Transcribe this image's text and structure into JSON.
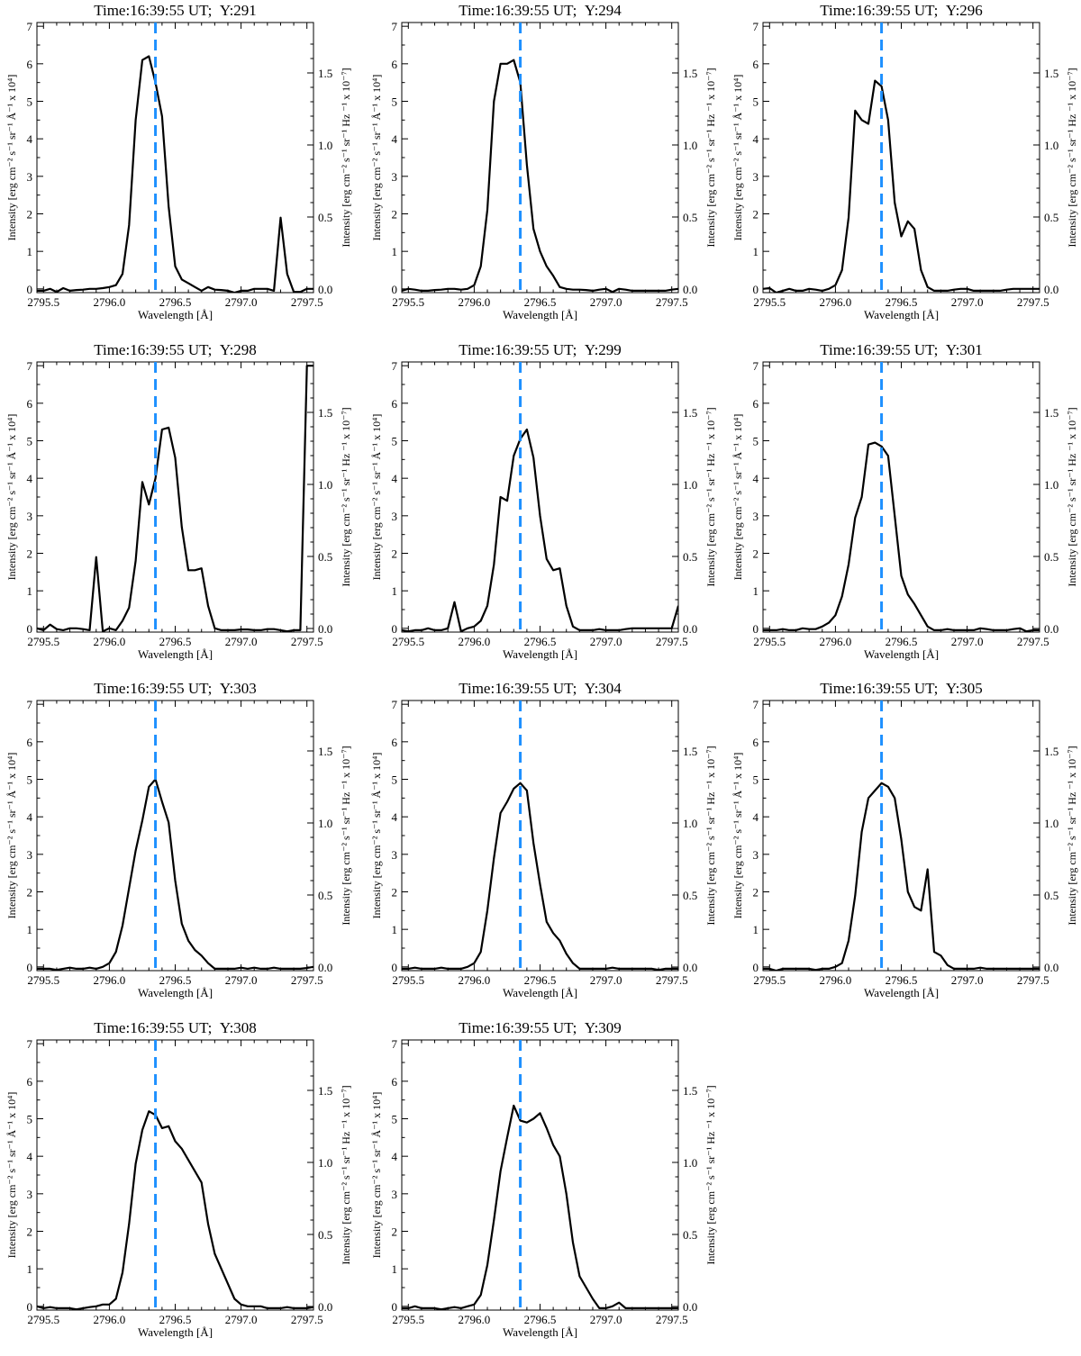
{
  "figure": {
    "time_label": "Time:16:39:55 UT;",
    "xlabel": "Wavelength [Å]",
    "ylabel_left": "Intensity [erg cm⁻² s⁻¹ sr⁻¹ Å⁻¹ x 10⁴]",
    "ylabel_right": "Intensity [erg cm⁻² s⁻¹ sr⁻¹ Hz ⁻¹ x 10⁻⁷]",
    "xticks": [
      "2795.5",
      "2796.0",
      "2796.5",
      "2797.0",
      "2797.5"
    ],
    "yticks_left": [
      "0",
      "1",
      "2",
      "3",
      "4",
      "5",
      "6",
      "7"
    ],
    "yticks_right": [
      "0.0",
      "0.5",
      "1.0",
      "1.5"
    ],
    "reference_color": "#1e90ff",
    "line_color": "#000000"
  },
  "chart_data": [
    {
      "type": "line",
      "title": "Y:291",
      "xlim": [
        2795.45,
        2797.55
      ],
      "ylim": [
        -0.1,
        7.1
      ],
      "ylim_right": [
        -0.025,
        1.85
      ],
      "reference_x": 2796.35,
      "x": [
        2795.45,
        2795.5,
        2795.55,
        2795.6,
        2795.65,
        2795.7,
        2795.75,
        2795.8,
        2795.85,
        2795.9,
        2795.95,
        2796.0,
        2796.05,
        2796.1,
        2796.15,
        2796.2,
        2796.25,
        2796.3,
        2796.35,
        2796.4,
        2796.45,
        2796.5,
        2796.55,
        2796.6,
        2796.65,
        2796.7,
        2796.75,
        2796.8,
        2796.85,
        2796.9,
        2796.95,
        2797.0,
        2797.05,
        2797.1,
        2797.15,
        2797.2,
        2797.25,
        2797.3,
        2797.35,
        2797.4,
        2797.45,
        2797.5,
        2797.55
      ],
      "y": [
        -0.05,
        -0.05,
        0.0,
        -0.08,
        0.02,
        -0.05,
        -0.03,
        -0.02,
        0.0,
        0.0,
        0.02,
        0.05,
        0.1,
        0.4,
        1.7,
        4.5,
        6.1,
        6.2,
        5.5,
        4.6,
        2.2,
        0.6,
        0.25,
        0.15,
        0.05,
        -0.05,
        0.05,
        -0.02,
        -0.03,
        -0.05,
        -0.1,
        -0.05,
        -0.05,
        0.0,
        0.0,
        0.0,
        -0.05,
        1.9,
        0.4,
        -0.08,
        -0.08,
        0.0,
        0.0
      ]
    },
    {
      "type": "line",
      "title": "Y:294",
      "xlim": [
        2795.45,
        2797.55
      ],
      "ylim": [
        -0.1,
        7.1
      ],
      "ylim_right": [
        -0.025,
        1.85
      ],
      "reference_x": 2796.35,
      "x": [
        2795.45,
        2795.5,
        2795.55,
        2795.6,
        2795.65,
        2795.7,
        2795.75,
        2795.8,
        2795.85,
        2795.9,
        2795.95,
        2796.0,
        2796.05,
        2796.1,
        2796.15,
        2796.2,
        2796.25,
        2796.3,
        2796.35,
        2796.4,
        2796.45,
        2796.5,
        2796.55,
        2796.6,
        2796.65,
        2796.7,
        2796.75,
        2796.8,
        2796.85,
        2796.9,
        2796.95,
        2797.0,
        2797.05,
        2797.1,
        2797.15,
        2797.2,
        2797.25,
        2797.3,
        2797.35,
        2797.4,
        2797.45,
        2797.5,
        2797.55
      ],
      "y": [
        -0.05,
        0.0,
        -0.02,
        -0.05,
        -0.05,
        -0.03,
        -0.02,
        0.0,
        0.0,
        -0.02,
        0.0,
        0.1,
        0.6,
        2.1,
        5.0,
        6.0,
        6.0,
        6.1,
        5.5,
        3.3,
        1.6,
        1.0,
        0.6,
        0.35,
        0.05,
        0.0,
        -0.02,
        -0.02,
        -0.03,
        -0.05,
        -0.02,
        0.0,
        -0.08,
        0.0,
        -0.02,
        -0.05,
        -0.05,
        -0.05,
        -0.05,
        -0.05,
        -0.05,
        -0.02,
        0.0
      ]
    },
    {
      "type": "line",
      "title": "Y:296",
      "xlim": [
        2795.45,
        2797.55
      ],
      "ylim": [
        -0.1,
        7.1
      ],
      "ylim_right": [
        -0.025,
        1.85
      ],
      "reference_x": 2796.35,
      "x": [
        2795.45,
        2795.5,
        2795.55,
        2795.6,
        2795.65,
        2795.7,
        2795.75,
        2795.8,
        2795.85,
        2795.9,
        2795.95,
        2796.0,
        2796.05,
        2796.1,
        2796.15,
        2796.2,
        2796.25,
        2796.3,
        2796.35,
        2796.4,
        2796.45,
        2796.5,
        2796.55,
        2796.6,
        2796.65,
        2796.7,
        2796.75,
        2796.8,
        2796.85,
        2796.9,
        2796.95,
        2797.0,
        2797.05,
        2797.1,
        2797.15,
        2797.2,
        2797.25,
        2797.3,
        2797.35,
        2797.4,
        2797.45,
        2797.5,
        2797.55
      ],
      "y": [
        0.0,
        0.02,
        -0.1,
        -0.05,
        0.0,
        -0.05,
        -0.05,
        0.0,
        -0.02,
        -0.05,
        0.0,
        0.1,
        0.5,
        1.9,
        4.75,
        4.5,
        4.4,
        5.55,
        5.4,
        4.5,
        2.3,
        1.4,
        1.8,
        1.6,
        0.5,
        0.05,
        -0.05,
        -0.05,
        -0.05,
        -0.02,
        0.0,
        0.0,
        -0.05,
        -0.05,
        -0.05,
        -0.05,
        -0.05,
        -0.02,
        0.0,
        0.0,
        0.0,
        0.0,
        0.0
      ]
    },
    {
      "type": "line",
      "title": "Y:298",
      "xlim": [
        2795.45,
        2797.55
      ],
      "ylim": [
        -0.1,
        7.1
      ],
      "ylim_right": [
        -0.025,
        1.85
      ],
      "reference_x": 2796.35,
      "x": [
        2795.45,
        2795.5,
        2795.55,
        2795.6,
        2795.65,
        2795.7,
        2795.75,
        2795.8,
        2795.85,
        2795.9,
        2795.95,
        2796.0,
        2796.05,
        2796.1,
        2796.15,
        2796.2,
        2796.25,
        2796.3,
        2796.35,
        2796.4,
        2796.45,
        2796.5,
        2796.55,
        2796.6,
        2796.65,
        2796.7,
        2796.75,
        2796.8,
        2796.85,
        2796.9,
        2796.95,
        2797.0,
        2797.05,
        2797.1,
        2797.15,
        2797.2,
        2797.25,
        2797.3,
        2797.35,
        2797.4,
        2797.45,
        2797.5,
        2797.55
      ],
      "y": [
        0.0,
        -0.05,
        0.1,
        -0.02,
        -0.05,
        0.0,
        0.0,
        -0.02,
        -0.05,
        1.9,
        -0.08,
        0.0,
        -0.05,
        0.2,
        0.55,
        1.8,
        3.9,
        3.3,
        4.0,
        5.3,
        5.35,
        4.55,
        2.7,
        1.55,
        1.55,
        1.6,
        0.6,
        0.0,
        -0.05,
        -0.05,
        -0.05,
        -0.03,
        -0.03,
        -0.05,
        -0.05,
        -0.02,
        -0.02,
        -0.05,
        -0.08,
        -0.05,
        -0.05,
        7.0,
        7.0
      ]
    },
    {
      "type": "line",
      "title": "Y:299",
      "xlim": [
        2795.45,
        2797.55
      ],
      "ylim": [
        -0.1,
        7.1
      ],
      "ylim_right": [
        -0.025,
        1.85
      ],
      "reference_x": 2796.35,
      "x": [
        2795.45,
        2795.5,
        2795.55,
        2795.6,
        2795.65,
        2795.7,
        2795.75,
        2795.8,
        2795.85,
        2795.9,
        2795.95,
        2796.0,
        2796.05,
        2796.1,
        2796.15,
        2796.2,
        2796.25,
        2796.3,
        2796.35,
        2796.4,
        2796.45,
        2796.5,
        2796.55,
        2796.6,
        2796.65,
        2796.7,
        2796.75,
        2796.8,
        2796.85,
        2796.9,
        2796.95,
        2797.0,
        2797.05,
        2797.1,
        2797.15,
        2797.2,
        2797.25,
        2797.3,
        2797.35,
        2797.4,
        2797.45,
        2797.5,
        2797.55
      ],
      "y": [
        -0.05,
        -0.08,
        -0.05,
        -0.05,
        0.0,
        -0.05,
        -0.05,
        0.0,
        0.7,
        -0.08,
        0.0,
        0.05,
        0.2,
        0.6,
        1.7,
        3.5,
        3.4,
        4.6,
        5.05,
        5.3,
        4.55,
        3.0,
        1.85,
        1.55,
        1.6,
        0.6,
        0.05,
        -0.05,
        -0.05,
        -0.05,
        -0.02,
        -0.05,
        -0.05,
        -0.05,
        -0.02,
        0.0,
        0.0,
        0.0,
        0.0,
        0.0,
        0.0,
        0.0,
        0.6
      ]
    },
    {
      "type": "line",
      "title": "Y:301",
      "xlim": [
        2795.45,
        2797.55
      ],
      "ylim": [
        -0.1,
        7.1
      ],
      "ylim_right": [
        -0.025,
        1.85
      ],
      "reference_x": 2796.35,
      "x": [
        2795.45,
        2795.5,
        2795.55,
        2795.6,
        2795.65,
        2795.7,
        2795.75,
        2795.8,
        2795.85,
        2795.9,
        2795.95,
        2796.0,
        2796.05,
        2796.1,
        2796.15,
        2796.2,
        2796.25,
        2796.3,
        2796.35,
        2796.4,
        2796.45,
        2796.5,
        2796.55,
        2796.6,
        2796.65,
        2796.7,
        2796.75,
        2796.8,
        2796.85,
        2796.9,
        2796.95,
        2797.0,
        2797.05,
        2797.1,
        2797.15,
        2797.2,
        2797.25,
        2797.3,
        2797.35,
        2797.4,
        2797.45,
        2797.5,
        2797.55
      ],
      "y": [
        -0.05,
        -0.05,
        -0.05,
        -0.02,
        -0.05,
        -0.05,
        0.0,
        -0.02,
        -0.02,
        0.05,
        0.15,
        0.35,
        0.85,
        1.7,
        2.95,
        3.5,
        4.9,
        4.95,
        4.85,
        4.6,
        3.0,
        1.4,
        0.9,
        0.65,
        0.35,
        0.05,
        -0.05,
        -0.05,
        -0.02,
        -0.05,
        -0.05,
        -0.05,
        -0.05,
        0.0,
        -0.02,
        -0.05,
        -0.05,
        -0.05,
        -0.02,
        0.0,
        -0.08,
        -0.05,
        -0.05
      ]
    },
    {
      "type": "line",
      "title": "Y:303",
      "xlim": [
        2795.45,
        2797.55
      ],
      "ylim": [
        -0.1,
        7.1
      ],
      "ylim_right": [
        -0.025,
        1.85
      ],
      "reference_x": 2796.35,
      "x": [
        2795.45,
        2795.5,
        2795.55,
        2795.6,
        2795.65,
        2795.7,
        2795.75,
        2795.8,
        2795.85,
        2795.9,
        2795.95,
        2796.0,
        2796.05,
        2796.1,
        2796.15,
        2796.2,
        2796.25,
        2796.3,
        2796.35,
        2796.4,
        2796.45,
        2796.5,
        2796.55,
        2796.6,
        2796.65,
        2796.7,
        2796.75,
        2796.8,
        2796.85,
        2796.9,
        2796.95,
        2797.0,
        2797.05,
        2797.1,
        2797.15,
        2797.2,
        2797.25,
        2797.3,
        2797.35,
        2797.4,
        2797.45,
        2797.5,
        2797.55
      ],
      "y": [
        -0.05,
        -0.05,
        -0.05,
        -0.08,
        -0.05,
        -0.02,
        -0.05,
        -0.05,
        -0.02,
        -0.05,
        0.0,
        0.1,
        0.4,
        1.1,
        2.1,
        3.1,
        3.9,
        4.8,
        5.0,
        4.4,
        3.85,
        2.3,
        1.15,
        0.7,
        0.45,
        0.3,
        0.1,
        -0.05,
        -0.05,
        -0.05,
        -0.05,
        -0.02,
        -0.05,
        -0.02,
        -0.05,
        -0.05,
        -0.02,
        -0.05,
        -0.05,
        -0.05,
        -0.05,
        -0.03,
        0.0
      ]
    },
    {
      "type": "line",
      "title": "Y:304",
      "xlim": [
        2795.45,
        2797.55
      ],
      "ylim": [
        -0.1,
        7.1
      ],
      "ylim_right": [
        -0.025,
        1.85
      ],
      "reference_x": 2796.35,
      "x": [
        2795.45,
        2795.5,
        2795.55,
        2795.6,
        2795.65,
        2795.7,
        2795.75,
        2795.8,
        2795.85,
        2795.9,
        2795.95,
        2796.0,
        2796.05,
        2796.1,
        2796.15,
        2796.2,
        2796.25,
        2796.3,
        2796.35,
        2796.4,
        2796.45,
        2796.5,
        2796.55,
        2796.6,
        2796.65,
        2796.7,
        2796.75,
        2796.8,
        2796.85,
        2796.9,
        2796.95,
        2797.0,
        2797.05,
        2797.1,
        2797.15,
        2797.2,
        2797.25,
        2797.3,
        2797.35,
        2797.4,
        2797.45,
        2797.5,
        2797.55
      ],
      "y": [
        -0.05,
        -0.05,
        -0.02,
        -0.05,
        -0.05,
        -0.05,
        -0.02,
        -0.05,
        -0.05,
        -0.05,
        0.0,
        0.1,
        0.4,
        1.5,
        2.9,
        4.1,
        4.4,
        4.75,
        4.9,
        4.7,
        3.3,
        2.2,
        1.2,
        0.9,
        0.7,
        0.35,
        0.1,
        -0.05,
        -0.05,
        -0.05,
        -0.05,
        -0.05,
        -0.02,
        -0.05,
        -0.05,
        -0.05,
        -0.05,
        -0.05,
        -0.05,
        -0.08,
        -0.05,
        -0.05,
        -0.05
      ]
    },
    {
      "type": "line",
      "title": "Y:305",
      "xlim": [
        2795.45,
        2797.55
      ],
      "ylim": [
        -0.1,
        7.1
      ],
      "ylim_right": [
        -0.025,
        1.85
      ],
      "reference_x": 2796.35,
      "x": [
        2795.45,
        2795.5,
        2795.55,
        2795.6,
        2795.65,
        2795.7,
        2795.75,
        2795.8,
        2795.85,
        2795.9,
        2795.95,
        2796.0,
        2796.05,
        2796.1,
        2796.15,
        2796.2,
        2796.25,
        2796.3,
        2796.35,
        2796.4,
        2796.45,
        2796.5,
        2796.55,
        2796.6,
        2796.65,
        2796.7,
        2796.75,
        2796.8,
        2796.85,
        2796.9,
        2796.95,
        2797.0,
        2797.05,
        2797.1,
        2797.15,
        2797.2,
        2797.25,
        2797.3,
        2797.35,
        2797.4,
        2797.45,
        2797.5,
        2797.55
      ],
      "y": [
        -0.05,
        -0.05,
        -0.1,
        -0.05,
        -0.05,
        -0.05,
        -0.05,
        -0.05,
        -0.08,
        -0.05,
        -0.05,
        0.0,
        0.1,
        0.7,
        1.9,
        3.6,
        4.5,
        4.7,
        4.9,
        4.8,
        4.5,
        3.4,
        2.0,
        1.6,
        1.5,
        2.6,
        0.4,
        0.3,
        0.05,
        -0.05,
        -0.05,
        -0.05,
        -0.05,
        -0.02,
        -0.05,
        -0.05,
        -0.05,
        -0.05,
        -0.05,
        -0.05,
        -0.05,
        -0.05,
        -0.05
      ]
    },
    {
      "type": "line",
      "title": "Y:308",
      "xlim": [
        2795.45,
        2797.55
      ],
      "ylim": [
        -0.1,
        7.1
      ],
      "ylim_right": [
        -0.025,
        1.85
      ],
      "reference_x": 2796.35,
      "x": [
        2795.45,
        2795.5,
        2795.55,
        2795.6,
        2795.65,
        2795.7,
        2795.75,
        2795.8,
        2795.85,
        2795.9,
        2795.95,
        2796.0,
        2796.05,
        2796.1,
        2796.15,
        2796.2,
        2796.25,
        2796.3,
        2796.35,
        2796.4,
        2796.45,
        2796.5,
        2796.55,
        2796.6,
        2796.65,
        2796.7,
        2796.75,
        2796.8,
        2796.85,
        2796.9,
        2796.95,
        2797.0,
        2797.05,
        2797.1,
        2797.15,
        2797.2,
        2797.25,
        2797.3,
        2797.35,
        2797.4,
        2797.45,
        2797.5,
        2797.55
      ],
      "y": [
        0.0,
        -0.05,
        -0.02,
        -0.05,
        -0.05,
        -0.05,
        -0.08,
        -0.05,
        -0.02,
        0.0,
        0.05,
        0.05,
        0.2,
        0.9,
        2.2,
        3.8,
        4.7,
        5.2,
        5.1,
        4.75,
        4.8,
        4.4,
        4.2,
        3.9,
        3.6,
        3.3,
        2.2,
        1.4,
        1.0,
        0.6,
        0.2,
        0.05,
        0.0,
        0.0,
        0.0,
        -0.05,
        -0.05,
        -0.05,
        -0.02,
        -0.05,
        -0.05,
        -0.05,
        -0.02
      ]
    },
    {
      "type": "line",
      "title": "Y:309",
      "xlim": [
        2795.45,
        2797.55
      ],
      "ylim": [
        -0.1,
        7.1
      ],
      "ylim_right": [
        -0.025,
        1.85
      ],
      "reference_x": 2796.35,
      "x": [
        2795.45,
        2795.5,
        2795.55,
        2795.6,
        2795.65,
        2795.7,
        2795.75,
        2795.8,
        2795.85,
        2795.9,
        2795.95,
        2796.0,
        2796.05,
        2796.1,
        2796.15,
        2796.2,
        2796.25,
        2796.3,
        2796.35,
        2796.4,
        2796.45,
        2796.5,
        2796.55,
        2796.6,
        2796.65,
        2796.7,
        2796.75,
        2796.8,
        2796.85,
        2796.9,
        2796.95,
        2797.0,
        2797.05,
        2797.1,
        2797.15,
        2797.2,
        2797.25,
        2797.3,
        2797.35,
        2797.4,
        2797.45,
        2797.5,
        2797.55
      ],
      "y": [
        -0.05,
        -0.05,
        0.0,
        -0.05,
        -0.05,
        -0.05,
        -0.08,
        -0.05,
        -0.02,
        -0.05,
        0.0,
        0.05,
        0.3,
        1.1,
        2.3,
        3.6,
        4.5,
        5.35,
        4.95,
        4.9,
        5.0,
        5.15,
        4.75,
        4.3,
        4.0,
        3.0,
        1.7,
        0.8,
        0.5,
        0.2,
        -0.05,
        -0.05,
        0.0,
        0.1,
        -0.05,
        -0.05,
        -0.05,
        -0.05,
        -0.05,
        -0.05,
        -0.05,
        -0.05,
        -0.05
      ]
    }
  ]
}
